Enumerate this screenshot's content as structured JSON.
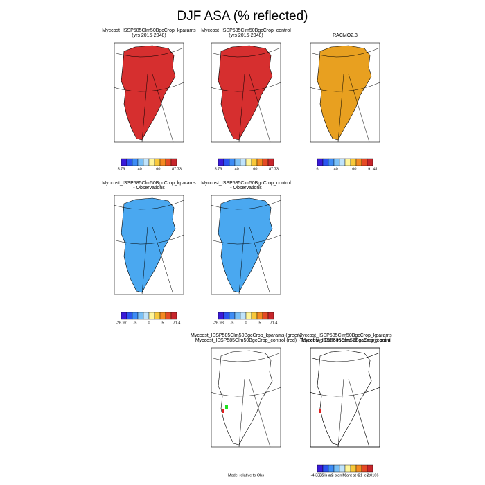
{
  "title": "DJF ASA (% reflected)",
  "panels": [
    {
      "title_lines": [
        "Myccost_ISSP585Clm50BgcCrop_kparams",
        "(yrs 2015-2048)"
      ],
      "colorbar_labels": [
        "5.73",
        "40",
        "60",
        "87.73"
      ]
    },
    {
      "title_lines": [
        "Myccost_ISSP585Clm50BgcCrop_control",
        "(yrs 2015-2048)"
      ],
      "colorbar_labels": [
        "5.73",
        "40",
        "60",
        "87.73"
      ]
    },
    {
      "title_lines": [
        "RACMO2.3"
      ],
      "colorbar_labels": [
        "6",
        "40",
        "60",
        "91.41"
      ]
    },
    {
      "title_lines": [
        "Myccost_ISSP585Clm50BgcCrop_kparams",
        "- Observations"
      ],
      "colorbar_labels": [
        "-26.97",
        "-5",
        "0",
        "5",
        "71.4"
      ]
    },
    {
      "title_lines": [
        "Myccost_ISSP585Clm50BgcCrop_control",
        "- Observations"
      ],
      "colorbar_labels": [
        "-26.98",
        "-5",
        "0",
        "5",
        "71.4"
      ]
    },
    {
      "title_lines": [
        "Myccost_ISSP585Clm50BgcCrop_kparams",
        "- Myccost_ISSP585Clm50BgcCrop_control"
      ],
      "colorbar_labels": [
        "-4.3335",
        "-.2",
        ".0",
        ".2",
        "3.0166"
      ]
    },
    {
      "title_lines": [
        "Myccost_ISSP585Clm50BgcCrop_kparams (green)",
        "Myccost_ISSP585Clm50BgcCrop_control (red)"
      ],
      "footnote": "Model relative to Obs"
    },
    {
      "title_lines": [
        "Test of two Case means at each grid point"
      ],
      "footnote": "Cells are significant at 0.1 level"
    }
  ]
}
